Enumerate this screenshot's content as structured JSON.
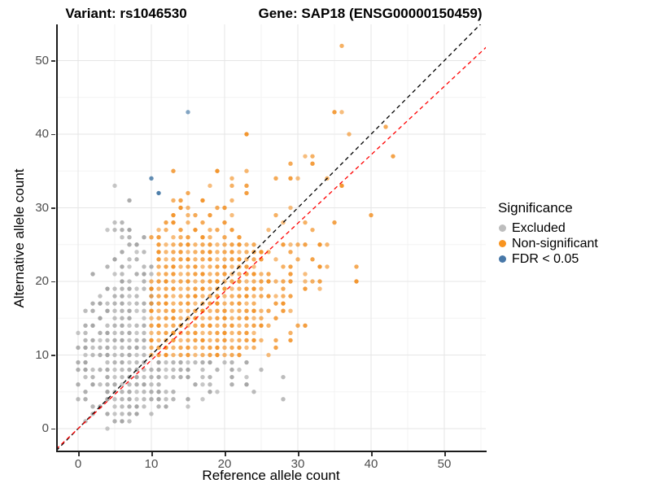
{
  "titles": {
    "left": "Variant: rs1046530",
    "right": "Gene: SAP18 (ENSG00000150459)"
  },
  "axes": {
    "x": {
      "label": "Reference allele count",
      "ticks": [
        0,
        10,
        20,
        30,
        40,
        50
      ],
      "minor_ticks": [
        5,
        15,
        25,
        35,
        45,
        55
      ],
      "range": [
        -3,
        56
      ]
    },
    "y": {
      "label": "Alternative allele count",
      "ticks": [
        0,
        10,
        20,
        30,
        40,
        50
      ],
      "minor_ticks": [
        5,
        15,
        25,
        35,
        45
      ],
      "range": [
        -3,
        55
      ]
    }
  },
  "legend": {
    "title": "Significance",
    "items": [
      {
        "label": "Excluded",
        "color": "#bdbdbd"
      },
      {
        "label": "Non-significant",
        "color": "#f89420"
      },
      {
        "label": "FDR < 0.05",
        "color": "#4878a8"
      }
    ]
  },
  "colors": {
    "excluded": "#9e9e9e",
    "non_significant": "#f28e1f",
    "fdr": "#3f74a3",
    "identity_line": "#000000",
    "fitted_line": "#ff0000",
    "grid_major": "#e6e6e6",
    "grid_minor": "#f3f3f3"
  },
  "chart_data": {
    "type": "scatter",
    "title": "",
    "xlabel": "Reference allele count",
    "ylabel": "Alternative allele count",
    "xlim": [
      -3,
      56
    ],
    "ylim": [
      -3,
      55
    ],
    "grid": true,
    "legend_position": "right",
    "lines": [
      {
        "name": "identity",
        "slope": 1,
        "intercept": 0,
        "style": "dashed",
        "color": "#000000"
      },
      {
        "name": "fitted-ratio",
        "slope": 0.93,
        "intercept": 0,
        "style": "dashed",
        "color": "#ff0000"
      }
    ],
    "series": [
      {
        "name": "Excluded",
        "color": "#9e9e9e",
        "rows_alt_to_refs": {
          "0": [
            4
          ],
          "1": [
            1,
            5,
            6,
            7
          ],
          "2": [
            2,
            4,
            5,
            6,
            7,
            8,
            10
          ],
          "3": [
            2,
            3,
            5,
            6,
            7,
            8,
            9,
            11,
            12,
            15
          ],
          "4": [
            0,
            1,
            4,
            5,
            6,
            7,
            8,
            9,
            10,
            11,
            12,
            13,
            15,
            17,
            28
          ],
          "5": [
            1,
            4,
            5,
            6,
            7,
            8,
            9,
            10,
            11,
            12,
            13,
            18,
            19,
            24
          ],
          "6": [
            0,
            2,
            3,
            4,
            5,
            6,
            7,
            8,
            9,
            10,
            11,
            16,
            17,
            18,
            21,
            23
          ],
          "7": [
            1,
            2,
            4,
            5,
            6,
            7,
            8,
            9,
            10,
            11,
            12,
            13,
            14,
            15,
            17,
            18,
            21,
            23,
            28
          ],
          "8": [
            0,
            1,
            2,
            3,
            4,
            5,
            6,
            7,
            8,
            9,
            10,
            11,
            12,
            13,
            14,
            15,
            17,
            19,
            21,
            22,
            25
          ],
          "9": [
            0,
            1,
            4,
            5,
            6,
            7,
            8,
            9,
            11,
            12,
            13,
            14,
            15,
            16,
            17,
            18,
            20,
            21,
            23
          ],
          "10": [
            1,
            2,
            3,
            4,
            5,
            6,
            7,
            8,
            9
          ],
          "11": [
            0,
            1,
            2,
            3,
            4,
            5,
            6,
            7,
            8,
            9
          ],
          "12": [
            1,
            2,
            3,
            4,
            5,
            6,
            7,
            8,
            9
          ],
          "13": [
            0,
            1,
            3,
            4,
            5,
            6,
            7,
            8,
            9
          ],
          "14": [
            1,
            2,
            4,
            5,
            6,
            7,
            8,
            9
          ],
          "15": [
            3,
            5,
            6,
            7,
            9
          ],
          "16": [
            1,
            2,
            4,
            5,
            6,
            7,
            8,
            9
          ],
          "17": [
            2,
            3,
            4,
            5,
            6,
            7,
            8,
            9,
            10
          ],
          "18": [
            3,
            5,
            6,
            7,
            8,
            10
          ],
          "19": [
            4,
            5,
            6,
            7,
            8,
            9,
            10
          ],
          "20": [
            6,
            7,
            9
          ],
          "21": [
            2,
            5,
            6,
            8,
            9,
            10
          ],
          "22": [
            4,
            6,
            7,
            9,
            10
          ],
          "23": [
            5,
            7,
            8
          ],
          "24": [
            6,
            8,
            9
          ],
          "25": [
            7,
            8
          ],
          "26": [
            6,
            7,
            9
          ],
          "27": [
            4,
            5,
            6,
            7
          ],
          "28": [
            5,
            6
          ],
          "31": [
            7
          ],
          "33": [
            5
          ]
        }
      },
      {
        "name": "Non-significant",
        "color": "#f28e1f",
        "rows_alt_to_refs": {
          "10": [
            10,
            11,
            12,
            13,
            14,
            15,
            16,
            17,
            18,
            19,
            20,
            21,
            22,
            26
          ],
          "11": [
            10,
            11,
            12,
            13,
            14,
            15,
            16,
            17,
            18,
            19,
            20,
            21,
            22,
            23,
            24,
            27
          ],
          "12": [
            10,
            11,
            12,
            13,
            14,
            15,
            16,
            17,
            18,
            19,
            20,
            21,
            22,
            23,
            24,
            25,
            27,
            29
          ],
          "13": [
            10,
            11,
            12,
            13,
            14,
            15,
            16,
            17,
            18,
            19,
            20,
            21,
            22,
            23,
            24,
            29
          ],
          "14": [
            10,
            11,
            12,
            13,
            14,
            15,
            16,
            17,
            18,
            19,
            20,
            21,
            22,
            23,
            24,
            25,
            26,
            30,
            31
          ],
          "15": [
            10,
            11,
            12,
            13,
            14,
            15,
            16,
            17,
            18,
            19,
            20,
            21,
            22,
            23,
            24,
            25,
            27
          ],
          "16": [
            10,
            11,
            12,
            13,
            14,
            15,
            16,
            17,
            18,
            19,
            20,
            21,
            22,
            23,
            24,
            25,
            26,
            28,
            29
          ],
          "17": [
            10,
            11,
            12,
            13,
            14,
            15,
            16,
            17,
            18,
            19,
            20,
            21,
            22,
            23,
            24,
            27,
            28
          ],
          "18": [
            10,
            11,
            12,
            13,
            14,
            15,
            16,
            17,
            18,
            19,
            20,
            21,
            22,
            23,
            24,
            25,
            26,
            27,
            28,
            29
          ],
          "19": [
            10,
            11,
            12,
            13,
            14,
            15,
            16,
            17,
            18,
            19,
            20,
            21,
            22,
            23,
            24,
            25,
            28,
            31,
            33
          ],
          "20": [
            10,
            11,
            12,
            13,
            14,
            15,
            16,
            17,
            18,
            19,
            20,
            21,
            22,
            23,
            24,
            25,
            26,
            27,
            28,
            29,
            31,
            32,
            33,
            38
          ],
          "21": [
            11,
            12,
            13,
            14,
            15,
            16,
            17,
            18,
            19,
            20,
            21,
            22,
            23,
            24,
            25,
            26,
            29,
            31
          ],
          "22": [
            11,
            12,
            13,
            14,
            15,
            16,
            17,
            18,
            19,
            20,
            21,
            22,
            23,
            24,
            28,
            29,
            33,
            34,
            38
          ],
          "23": [
            11,
            12,
            13,
            14,
            15,
            16,
            17,
            18,
            19,
            20,
            21,
            22,
            23,
            24,
            25,
            27,
            30,
            32
          ],
          "24": [
            11,
            12,
            13,
            14,
            15,
            16,
            17,
            18,
            19,
            20,
            21,
            22,
            23,
            24,
            25,
            26,
            29
          ],
          "25": [
            11,
            12,
            13,
            14,
            15,
            16,
            17,
            18,
            19,
            20,
            21,
            22,
            23,
            24,
            28,
            29,
            30,
            31,
            33,
            34
          ],
          "26": [
            10,
            11,
            13,
            14,
            15,
            17,
            18,
            20,
            22
          ],
          "27": [
            11,
            12,
            14,
            16,
            18,
            19,
            21,
            26,
            32
          ],
          "28": [
            12,
            13,
            15,
            17,
            20,
            28,
            31,
            35
          ],
          "29": [
            13,
            15,
            16,
            18,
            21,
            27,
            40
          ],
          "30": [
            14,
            15,
            19,
            20,
            29
          ],
          "31": [
            13,
            14,
            17,
            21
          ],
          "32": [
            15,
            23
          ],
          "33": [
            18,
            21,
            23,
            36
          ],
          "34": [
            21,
            27,
            29,
            30,
            34
          ],
          "35": [
            13,
            19,
            23
          ],
          "36": [
            29,
            32
          ],
          "37": [
            31,
            32,
            43
          ],
          "40": [
            23,
            37
          ],
          "41": [
            42
          ],
          "43": [
            35,
            36
          ],
          "52": [
            36
          ]
        }
      },
      {
        "name": "FDR < 0.05",
        "color": "#3f74a3",
        "points": [
          [
            10,
            34
          ],
          [
            11,
            32
          ],
          [
            15,
            43
          ]
        ]
      }
    ]
  }
}
